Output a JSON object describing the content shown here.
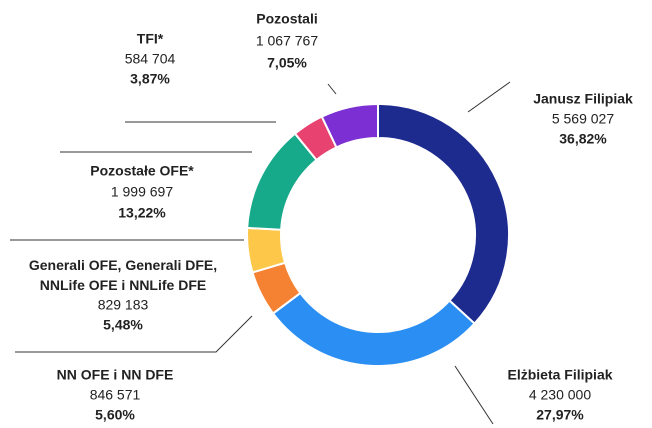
{
  "chart_data": {
    "type": "donut",
    "categories": [
      "Janusz Filipiak",
      "Elżbieta Filipiak",
      "NN OFE i NN DFE",
      "Generali OFE, Generali DFE, NNLife OFE i NNLife DFE",
      "Pozostałe OFE*",
      "TFI*",
      "Pozostali"
    ],
    "values": [
      36.82,
      27.97,
      5.6,
      5.48,
      13.22,
      3.87,
      7.05
    ],
    "value_labels": [
      "36,82%",
      "27,97%",
      "5,60%",
      "5,48%",
      "13,22%",
      "3,87%",
      "7,05%"
    ],
    "shares": [
      5569027,
      4230000,
      846571,
      829183,
      1999697,
      584704,
      1067767
    ],
    "share_labels": [
      "5 569 027",
      "4 230 000",
      "846 571",
      "829 183",
      "1 999 697",
      "584 704",
      "1 067 767"
    ],
    "colors": [
      "#1d2b8f",
      "#2b8ef2",
      "#f58233",
      "#fdc74a",
      "#16a98a",
      "#e84370",
      "#7c2fd2"
    ]
  }
}
